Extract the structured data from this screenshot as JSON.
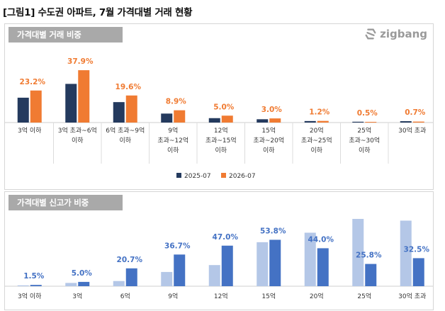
{
  "title": "[그림1] 수도권 아파트, 7월 가격대별 거래 현황",
  "brand": "zigbang",
  "colors": {
    "navy": "#243a5e",
    "orange": "#f07b32",
    "light_blue": "#b4c7e7",
    "blue": "#4472c4"
  },
  "chart_data": [
    {
      "type": "bar",
      "title": "가격대별 거래 비중",
      "categories": [
        [
          "3억 이하"
        ],
        [
          "3억 초과~6억",
          "이하"
        ],
        [
          "6억 초과~9억",
          "이하"
        ],
        [
          "9억",
          "초과~12억",
          "이하"
        ],
        [
          "12억",
          "초과~15억",
          "이하"
        ],
        [
          "15억",
          "초과~20억",
          "이하"
        ],
        [
          "20억",
          "초과~25억",
          "이하"
        ],
        [
          "25억",
          "초과~30억",
          "이하"
        ],
        [
          "30억 초과"
        ]
      ],
      "series": [
        {
          "name": "2025-07",
          "values": [
            18.0,
            28.0,
            14.8,
            6.5,
            3.2,
            2.4,
            1.1,
            0.6,
            1.0
          ]
        },
        {
          "name": "2026-07",
          "values": [
            23.2,
            37.9,
            19.6,
            8.9,
            5.0,
            3.0,
            1.2,
            0.5,
            0.7
          ],
          "labels": [
            "23.2%",
            "37.9%",
            "19.6%",
            "8.9%",
            "5.0%",
            "3.0%",
            "1.2%",
            "0.5%",
            "0.7%"
          ]
        }
      ],
      "legend": [
        "2025-07",
        "2026-07"
      ],
      "legend_position": "bottom",
      "ylim": [
        0,
        40
      ]
    },
    {
      "type": "bar",
      "title": "가격대별 신고가 비중",
      "categories": [
        "3억 이하",
        "3억",
        "6억",
        "9억",
        "12억",
        "15억",
        "20억",
        "25억",
        "30억 초과"
      ],
      "series": [
        {
          "values": [
            1.0,
            3.8,
            6.0,
            16.5,
            24.5,
            51.0,
            62.0,
            78.0,
            76.0
          ]
        },
        {
          "values": [
            1.5,
            5.0,
            20.7,
            36.7,
            47.0,
            53.8,
            44.0,
            25.8,
            32.5
          ],
          "labels": [
            "1.5%",
            "5.0%",
            "20.7%",
            "36.7%",
            "47.0%",
            "53.8%",
            "44.0%",
            "25.8%",
            "32.5%"
          ]
        }
      ],
      "ylim": [
        0,
        78
      ]
    }
  ]
}
